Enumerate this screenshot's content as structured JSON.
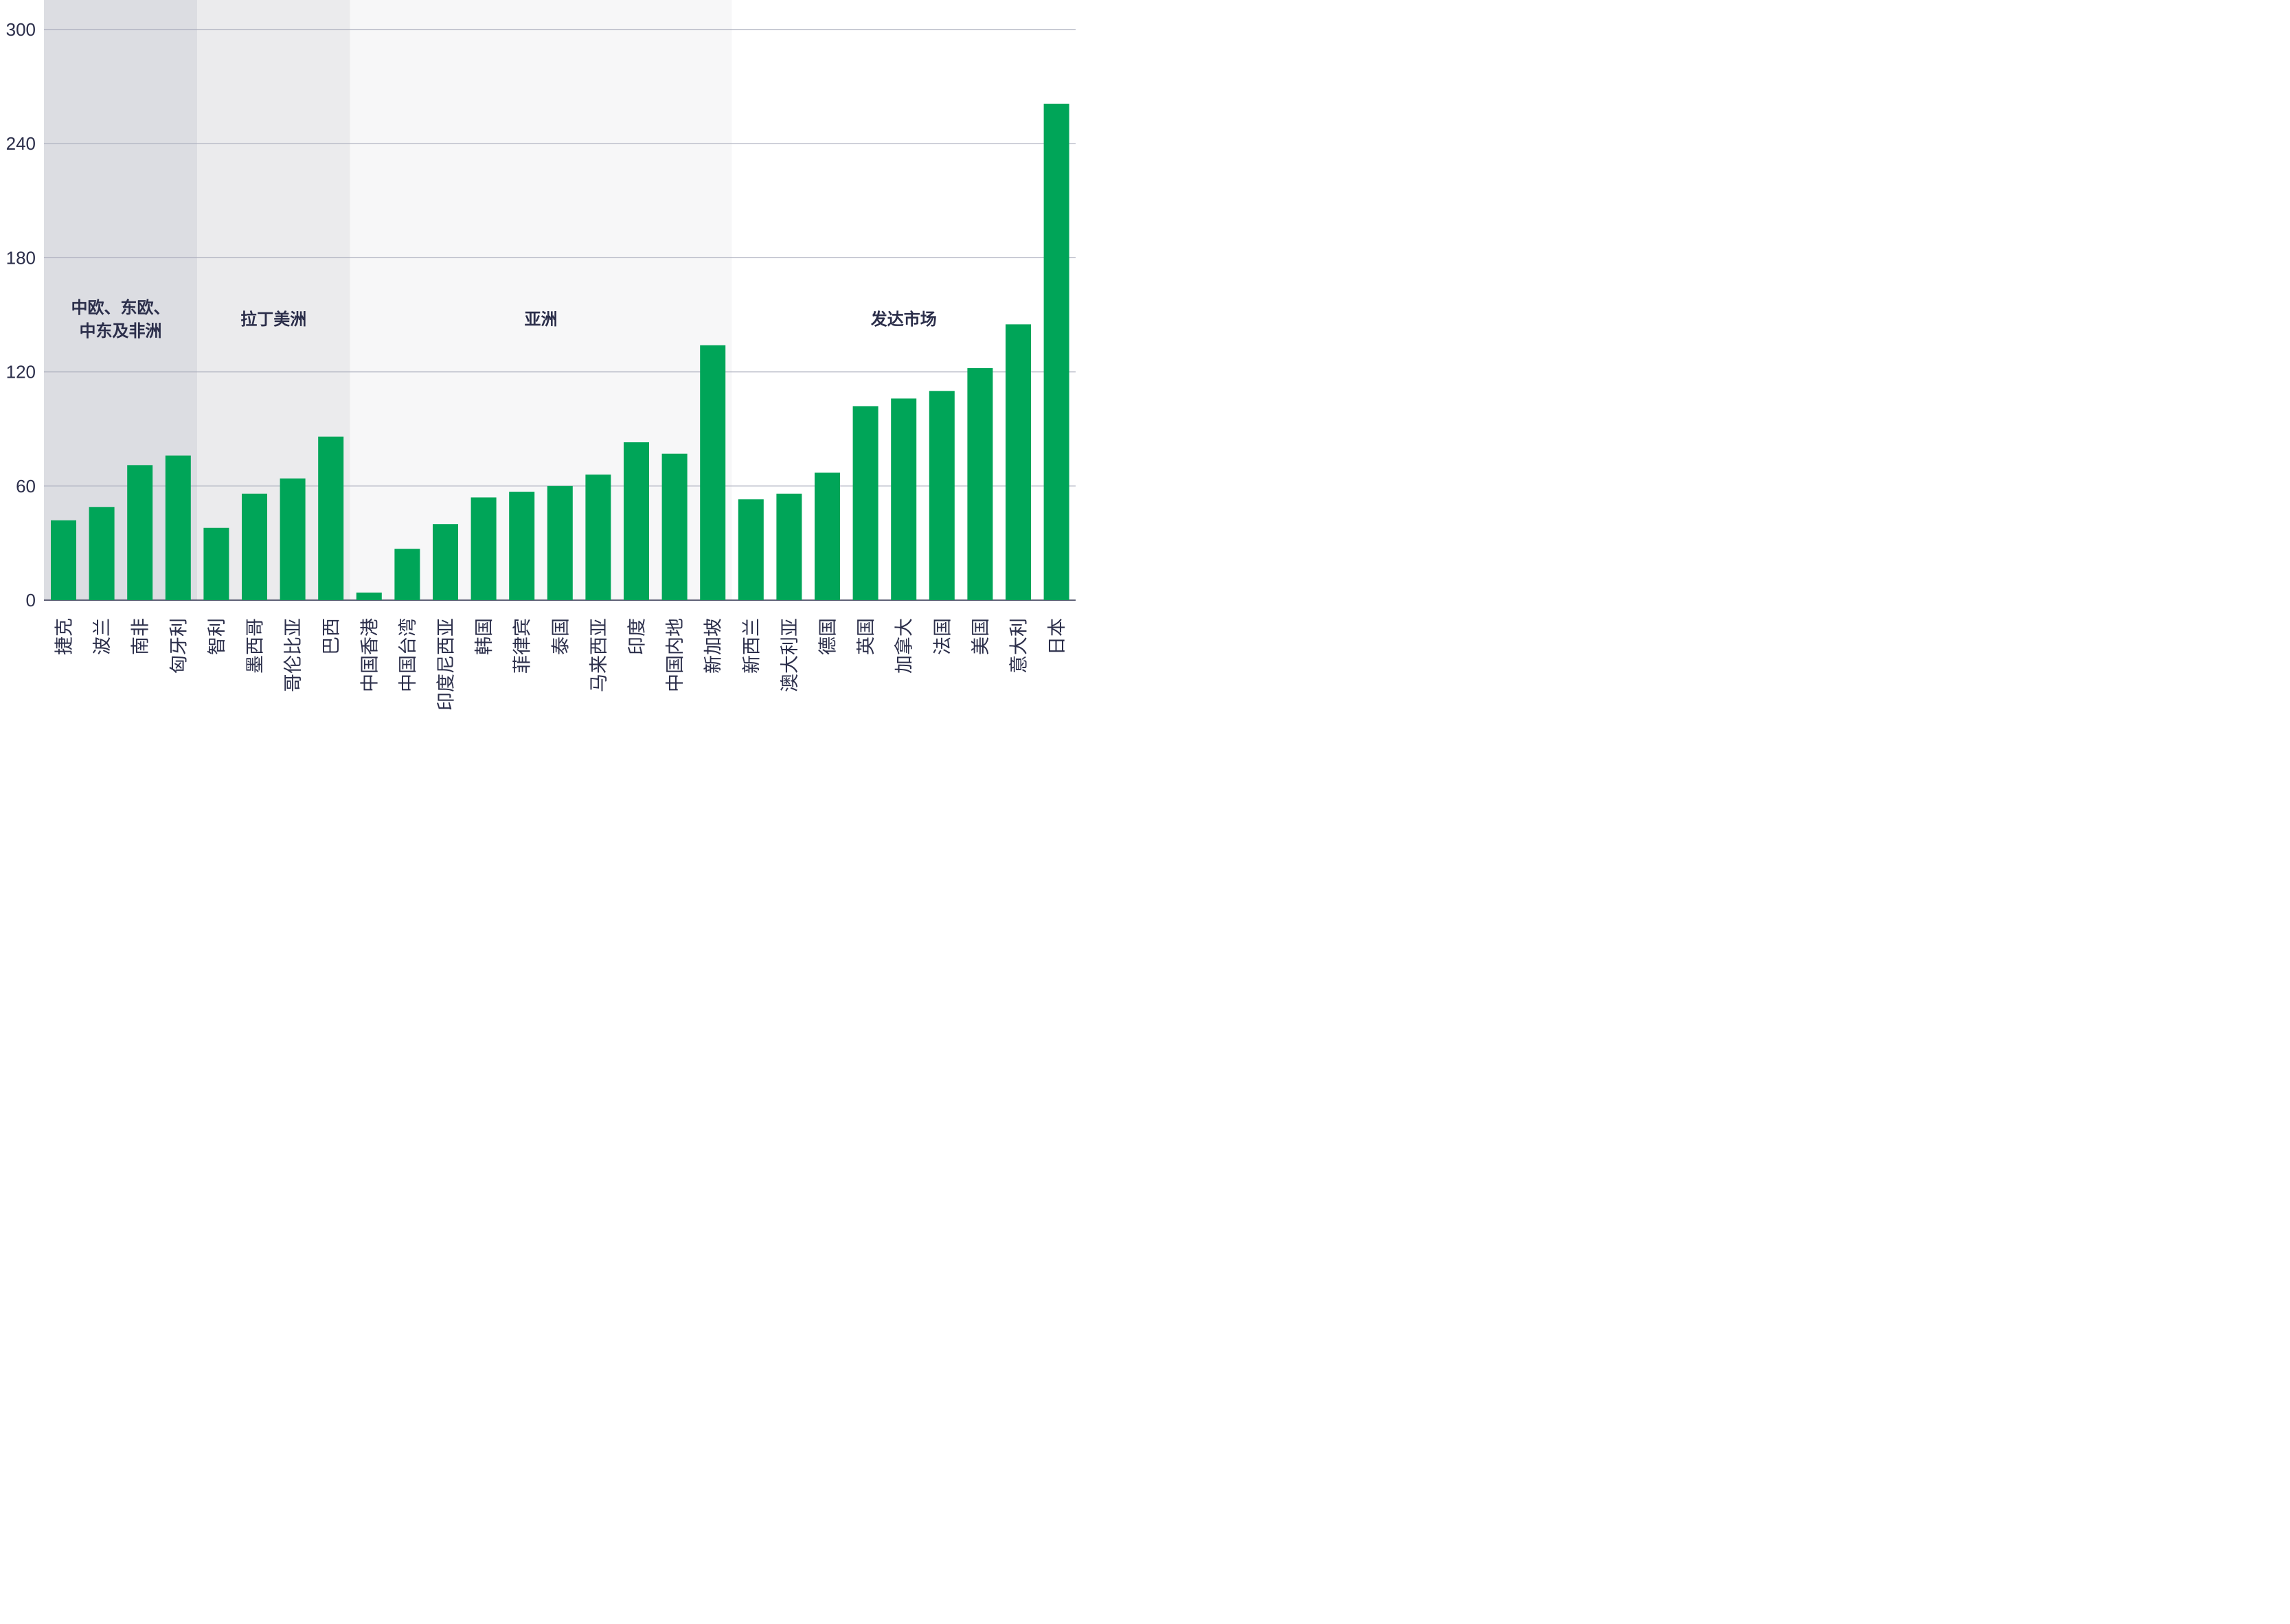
{
  "chart_data": {
    "type": "bar",
    "categories": [
      "捷克",
      "波兰",
      "南非",
      "匈牙利",
      "智利",
      "墨西哥",
      "哥伦比亚",
      "巴西",
      "中国香港",
      "中国台湾",
      "印度尼西亚",
      "韩国",
      "菲律宾",
      "泰国",
      "马来西亚",
      "印度",
      "中国内地",
      "新加坡",
      "新西兰",
      "澳大利亚",
      "德国",
      "英国",
      "加拿大",
      "法国",
      "美国",
      "意大利",
      "日本"
    ],
    "values": [
      42,
      49,
      71,
      76,
      38,
      56,
      64,
      86,
      4,
      27,
      40,
      54,
      57,
      60,
      66,
      83,
      77,
      134,
      53,
      56,
      67,
      102,
      106,
      110,
      122,
      145,
      261
    ],
    "yticks": [
      0,
      60,
      120,
      180,
      240,
      300
    ],
    "ylim": [
      0,
      300
    ],
    "grid": true,
    "bar_color": "#00a558",
    "regions": [
      {
        "lines": [
          "中欧、东欧、",
          "中东及非洲"
        ],
        "start": 0,
        "end": 3,
        "shade": "#dcdde2"
      },
      {
        "lines": [
          "拉丁美洲"
        ],
        "start": 4,
        "end": 7,
        "shade": "#ebebed"
      },
      {
        "lines": [
          "亚洲"
        ],
        "start": 8,
        "end": 17,
        "shade": "#f7f7f8"
      },
      {
        "lines": [
          "发达市场"
        ],
        "start": 18,
        "end": 26,
        "shade": "#ffffff"
      }
    ]
  }
}
